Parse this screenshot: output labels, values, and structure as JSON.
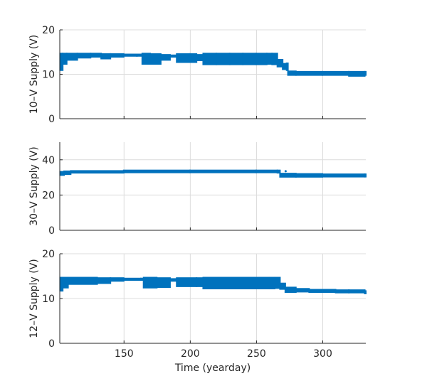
{
  "chart_data": [
    {
      "type": "scatter",
      "ylabel": "10–V Supply (V)",
      "xlabel": "",
      "xlim": [
        101.5,
        332.5
      ],
      "ylim": [
        0,
        20
      ],
      "yticks": [
        0,
        10,
        20
      ],
      "xticks": [
        150,
        200,
        250,
        300
      ],
      "show_xticklabels": false,
      "grid": true,
      "color": "#0072BD",
      "band_format": [
        "day",
        "min",
        "max"
      ],
      "bands": [
        [
          102,
          11,
          14.6
        ],
        [
          104,
          12.4,
          14.6
        ],
        [
          107,
          13.3,
          14.6
        ],
        [
          115,
          13.8,
          14.6
        ],
        [
          125,
          14.0,
          14.6
        ],
        [
          133,
          13.6,
          14.5
        ],
        [
          140,
          14.0,
          14.5
        ],
        [
          150,
          14.2,
          14.4
        ],
        [
          160,
          14.2,
          14.4
        ],
        [
          164,
          12.4,
          14.6
        ],
        [
          170,
          12.4,
          14.5
        ],
        [
          178,
          13.3,
          14.3
        ],
        [
          185,
          14.0,
          14.2
        ],
        [
          190,
          12.8,
          14.5
        ],
        [
          200,
          12.8,
          14.5
        ],
        [
          205,
          13.2,
          14.3
        ],
        [
          210,
          12.3,
          14.6
        ],
        [
          220,
          12.3,
          14.6
        ],
        [
          230,
          12.3,
          14.6
        ],
        [
          240,
          12.3,
          14.6
        ],
        [
          250,
          12.3,
          14.6
        ],
        [
          258,
          12.4,
          14.6
        ],
        [
          262,
          12.3,
          14.6
        ],
        [
          266,
          11.8,
          13.2
        ],
        [
          270,
          11.2,
          12.3
        ],
        [
          273,
          11.0,
          12.4
        ],
        [
          274,
          9.9,
          10.6
        ],
        [
          280,
          9.9,
          10.5
        ],
        [
          300,
          9.9,
          10.5
        ],
        [
          320,
          9.7,
          10.5
        ],
        [
          332,
          9.9,
          10.5
        ]
      ]
    },
    {
      "type": "scatter",
      "ylabel": "30–V Supply (V)",
      "xlabel": "",
      "xlim": [
        101.5,
        332.5
      ],
      "ylim": [
        0,
        50
      ],
      "yticks": [
        0,
        20,
        40
      ],
      "xticks": [
        150,
        200,
        250,
        300
      ],
      "show_xticklabels": false,
      "grid": true,
      "color": "#0072BD",
      "band_format": [
        "day",
        "min",
        "max"
      ],
      "bands": [
        [
          102,
          31.5,
          33
        ],
        [
          105,
          32,
          33.3
        ],
        [
          110,
          32.8,
          33.5
        ],
        [
          150,
          33,
          33.8
        ],
        [
          200,
          33,
          33.8
        ],
        [
          250,
          33,
          33.8
        ],
        [
          266,
          32.8,
          33.8
        ],
        [
          268,
          30.5,
          32
        ],
        [
          280,
          30.5,
          31.8
        ],
        [
          300,
          30.6,
          31.6
        ],
        [
          332,
          30.6,
          31.6
        ]
      ],
      "points": [
        [
          272,
          33.5
        ]
      ]
    },
    {
      "type": "scatter",
      "ylabel": "12–V Supply (V)",
      "xlabel": "Time (yearday)",
      "xlim": [
        101.5,
        332.5
      ],
      "ylim": [
        0,
        20
      ],
      "yticks": [
        0,
        10,
        20
      ],
      "xticks": [
        150,
        200,
        250,
        300
      ],
      "show_xticklabels": true,
      "grid": true,
      "color": "#0072BD",
      "band_format": [
        "day",
        "min",
        "max"
      ],
      "bands": [
        [
          102,
          11.8,
          14.6
        ],
        [
          104,
          12.5,
          14.6
        ],
        [
          108,
          13.3,
          14.6
        ],
        [
          130,
          13.5,
          14.5
        ],
        [
          140,
          14.0,
          14.5
        ],
        [
          150,
          14.2,
          14.4
        ],
        [
          163,
          14.2,
          14.4
        ],
        [
          165,
          12.5,
          14.6
        ],
        [
          175,
          12.6,
          14.5
        ],
        [
          185,
          14.0,
          14.3
        ],
        [
          190,
          12.8,
          14.5
        ],
        [
          205,
          12.8,
          14.5
        ],
        [
          210,
          12.3,
          14.6
        ],
        [
          260,
          12.3,
          14.6
        ],
        [
          264,
          12.4,
          14.6
        ],
        [
          268,
          12.2,
          13.3
        ],
        [
          272,
          11.5,
          12.4
        ],
        [
          280,
          11.6,
          12.1
        ],
        [
          290,
          11.5,
          11.9
        ],
        [
          310,
          11.4,
          11.8
        ],
        [
          320,
          11.4,
          11.8
        ],
        [
          332,
          11.2,
          11.6
        ]
      ]
    }
  ]
}
